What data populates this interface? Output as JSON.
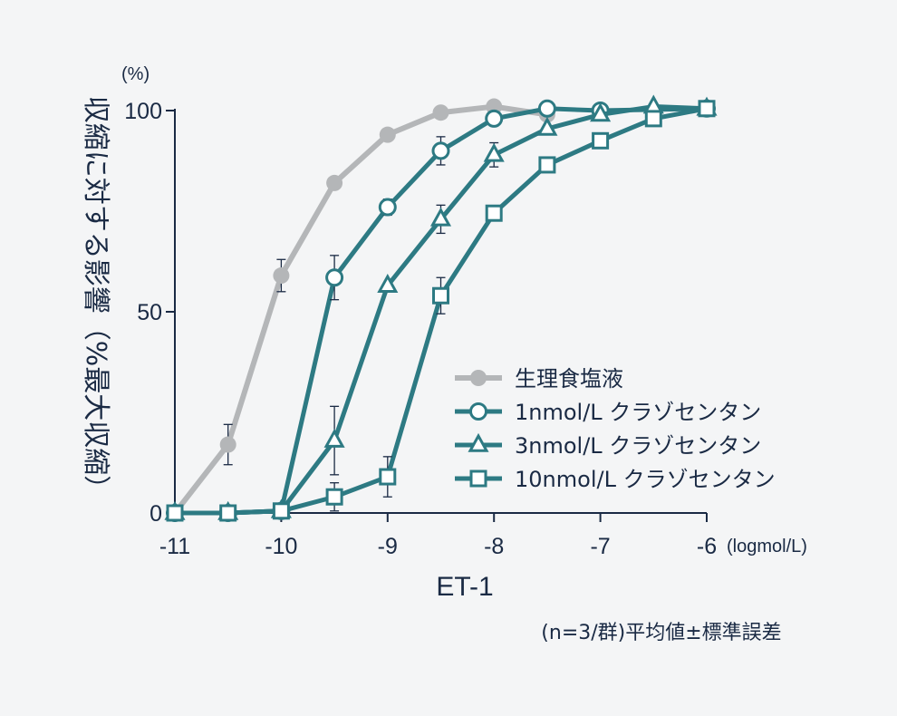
{
  "chart_data": {
    "type": "line",
    "xlabel": "ET-1",
    "x_unit": "(logmol/L)",
    "y_unit": "(%)",
    "ylabel": "収縮に対する影響（%最大収縮）",
    "xlim": [
      -11,
      -6
    ],
    "ylim": [
      0,
      100
    ],
    "x_ticks": [
      -11,
      -10,
      -9,
      -8,
      -7,
      -6
    ],
    "y_ticks": [
      0,
      50,
      100
    ],
    "x_tick_labels": [
      "-11",
      "-10",
      "-9",
      "-8",
      "-7",
      "-6"
    ],
    "y_tick_labels": [
      "0",
      "50",
      "100"
    ],
    "grid": false,
    "legend_position": "bottom-right",
    "note": "(n=3/群)平均値±標準誤差",
    "colors": {
      "saline": "#b4b6b8",
      "teal": "#2d7a83",
      "axis": "#1a2a44",
      "background": "#f4f5f6"
    },
    "series": [
      {
        "name": "生理食塩液",
        "marker": "filled-circle",
        "color": "#b4b6b8",
        "x": [
          -11,
          -10.5,
          -10,
          -9.5,
          -9,
          -8.5,
          -8,
          -7.5
        ],
        "y": [
          0,
          17,
          59,
          82,
          94,
          99.5,
          101,
          99
        ],
        "err": [
          0,
          5,
          4,
          0,
          1.5,
          0,
          0,
          0
        ]
      },
      {
        "name": "1nmol/L クラゾセンタン",
        "marker": "open-circle",
        "color": "#2d7a83",
        "x": [
          -11,
          -10.5,
          -10,
          -9.5,
          -9,
          -8.5,
          -8,
          -7.5,
          -7,
          -6
        ],
        "y": [
          0,
          0,
          0.5,
          58.5,
          76,
          90,
          98,
          100.5,
          100,
          100.5
        ],
        "err": [
          0,
          0,
          0,
          5.5,
          2,
          3.5,
          0,
          0,
          0,
          0
        ]
      },
      {
        "name": "3nmol/L クラゾセンタン",
        "marker": "open-triangle",
        "color": "#2d7a83",
        "x": [
          -11,
          -10.5,
          -10,
          -9.5,
          -9,
          -8.5,
          -8,
          -7.5,
          -7,
          -6.5,
          -6
        ],
        "y": [
          0,
          0,
          0.5,
          18,
          56.5,
          73,
          89,
          95.5,
          99,
          101,
          100.5
        ],
        "err": [
          0,
          0,
          0,
          8.5,
          0,
          3.5,
          3,
          0,
          0,
          0,
          0
        ]
      },
      {
        "name": "10nmol/L クラゾセンタン",
        "marker": "open-square",
        "color": "#2d7a83",
        "x": [
          -11,
          -10.5,
          -10,
          -9.5,
          -9,
          -8.5,
          -8,
          -7.5,
          -7,
          -6.5,
          -6
        ],
        "y": [
          0,
          0,
          0.5,
          4,
          9,
          54,
          74.5,
          86.5,
          92.5,
          98,
          100.5
        ],
        "err": [
          0,
          0,
          0,
          3.5,
          5,
          4.5,
          0,
          0,
          0,
          0,
          0
        ]
      }
    ]
  }
}
